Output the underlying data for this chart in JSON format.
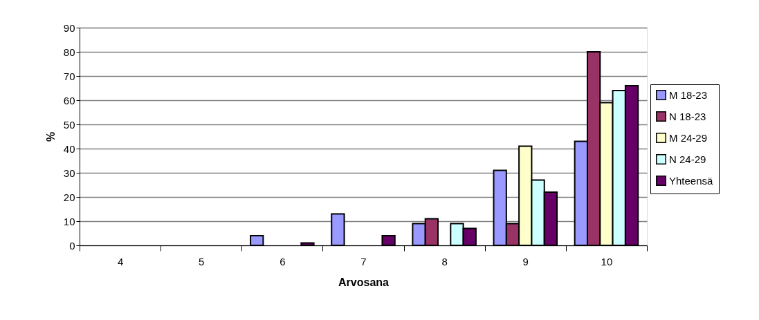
{
  "chart_data": {
    "type": "bar",
    "xlabel": "Arvosana",
    "ylabel": "%",
    "categories": [
      "4",
      "5",
      "6",
      "7",
      "8",
      "9",
      "10"
    ],
    "series": [
      {
        "name": "M 18-23",
        "color": "#9999ff",
        "values": [
          0,
          0,
          4,
          13,
          9,
          31,
          43
        ]
      },
      {
        "name": "N 18-23",
        "color": "#993366",
        "values": [
          0,
          0,
          0,
          0,
          11,
          9,
          80
        ]
      },
      {
        "name": "M 24-29",
        "color": "#ffffcc",
        "values": [
          0,
          0,
          0,
          0,
          0,
          41,
          59
        ]
      },
      {
        "name": "N 24-29",
        "color": "#ccffff",
        "values": [
          0,
          0,
          0,
          0,
          9,
          27,
          64
        ]
      },
      {
        "name": "Yhteensä",
        "color": "#660066",
        "values": [
          0,
          0,
          1,
          4,
          7,
          22,
          66
        ]
      }
    ],
    "ylim": [
      0,
      90
    ],
    "yticks": [
      0,
      10,
      20,
      30,
      40,
      50,
      60,
      70,
      80,
      90
    ],
    "grid": "y",
    "legend": "right"
  }
}
